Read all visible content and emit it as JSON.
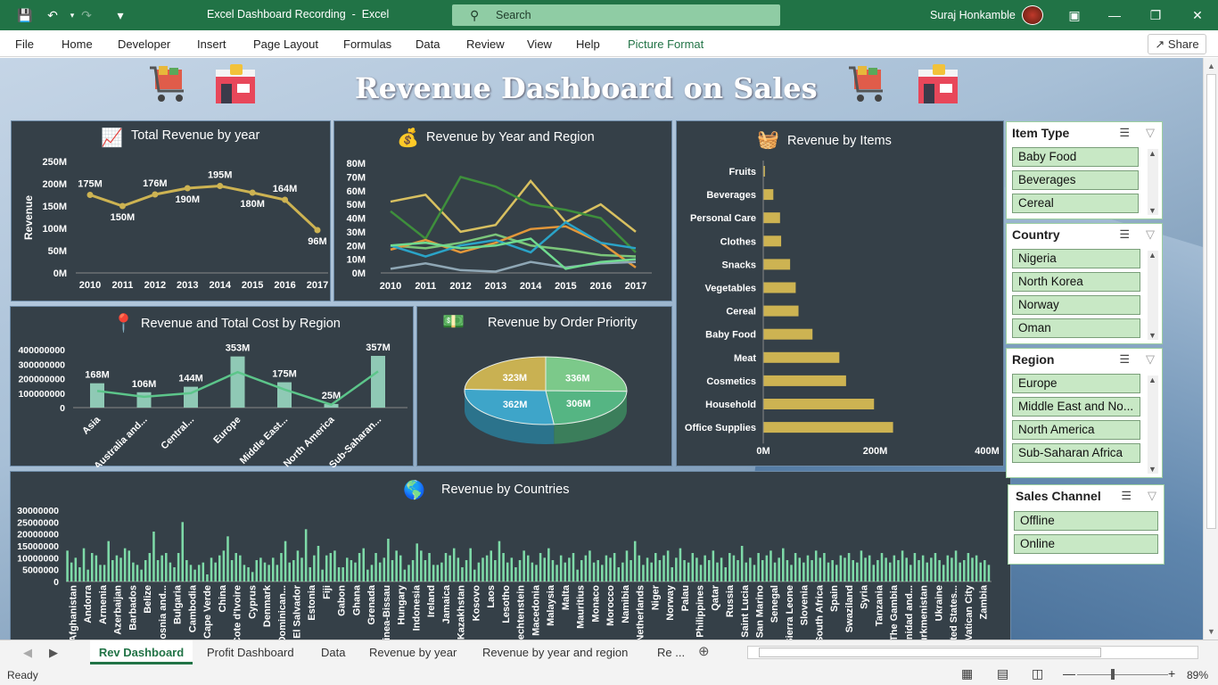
{
  "window": {
    "title": "Excel Dashboard Recording",
    "app": "Excel",
    "search": "Search",
    "user": "Suraj Honkamble"
  },
  "menu": [
    "File",
    "Home",
    "Developer",
    "Insert",
    "Page Layout",
    "Formulas",
    "Data",
    "Review",
    "View",
    "Help",
    "Picture Format"
  ],
  "share": "Share",
  "dashboard": {
    "title": "Revenue Dashboard on Sales"
  },
  "charts": {
    "total_by_year": {
      "title": "Total Revenue by year"
    },
    "year_region": {
      "title": "Revenue by Year and Region"
    },
    "items": {
      "title": "Revenue by Items"
    },
    "region_cost": {
      "title": "Revenue and Total Cost by Region"
    },
    "priority": {
      "title": "Revenue by Order Priority"
    },
    "countries": {
      "title": "Revenue by Countries"
    }
  },
  "chart_data": [
    {
      "type": "line",
      "title": "Total Revenue by year",
      "ylabel": "Revenue",
      "x": [
        "2010",
        "2011",
        "2012",
        "2013",
        "2014",
        "2015",
        "2016",
        "2017"
      ],
      "values": [
        175,
        150,
        176,
        190,
        195,
        180,
        164,
        96
      ],
      "data_labels": [
        "175M",
        "150M",
        "176M",
        "190M",
        "195M",
        "180M",
        "164M",
        "96M"
      ],
      "yticks": [
        "0M",
        "50M",
        "100M",
        "150M",
        "200M",
        "250M"
      ],
      "ylim": [
        0,
        250
      ],
      "color": "#cdb352"
    },
    {
      "type": "line",
      "title": "Revenue by Year and Region",
      "x": [
        "2010",
        "2011",
        "2012",
        "2013",
        "2014",
        "2015",
        "2016",
        "2017"
      ],
      "yticks": [
        "0M",
        "10M",
        "20M",
        "30M",
        "40M",
        "50M",
        "60M",
        "70M",
        "80M"
      ],
      "ylim": [
        0,
        80
      ],
      "series": [
        {
          "color": "#d8c060",
          "values": [
            52,
            57,
            30,
            35,
            67,
            37,
            50,
            30
          ]
        },
        {
          "color": "#3e8f3c",
          "values": [
            45,
            25,
            70,
            63,
            50,
            46,
            40,
            15
          ]
        },
        {
          "color": "#7bc67a",
          "values": [
            20,
            18,
            22,
            28,
            20,
            17,
            13,
            12
          ]
        },
        {
          "color": "#e3973a",
          "values": [
            17,
            24,
            15,
            22,
            32,
            34,
            22,
            4
          ]
        },
        {
          "color": "#2aa3c7",
          "values": [
            20,
            12,
            20,
            24,
            15,
            37,
            22,
            18
          ]
        },
        {
          "color": "#8fa7b5",
          "values": [
            3,
            7,
            2,
            1,
            8,
            4,
            7,
            8
          ]
        },
        {
          "color": "#6fdb8f",
          "values": [
            20,
            22,
            18,
            20,
            25,
            3,
            8,
            10
          ]
        }
      ]
    },
    {
      "type": "bar",
      "title": "Revenue by Items",
      "categories": [
        "Fruits",
        "Beverages",
        "Personal Care",
        "Clothes",
        "Snacks",
        "Vegetables",
        "Cereal",
        "Baby Food",
        "Meat",
        "Cosmetics",
        "Household",
        "Office Supplies"
      ],
      "values": [
        3,
        18,
        30,
        32,
        48,
        58,
        63,
        88,
        136,
        148,
        198,
        232
      ],
      "xticks": [
        "0M",
        "200M",
        "400M"
      ],
      "xlim": [
        0,
        400
      ],
      "color": "#cdb352"
    },
    {
      "type": "bar",
      "title": "Revenue and Total Cost by Region",
      "categories": [
        "Asia",
        "Australia and...",
        "Central...",
        "Europe",
        "Middle East...",
        "North America",
        "Sub-Saharan..."
      ],
      "values": [
        168,
        106,
        144,
        353,
        175,
        25,
        357
      ],
      "data_labels": [
        "168M",
        "106M",
        "144M",
        "353M",
        "175M",
        "25M",
        "357M"
      ],
      "line_values": [
        115,
        75,
        100,
        245,
        125,
        20,
        250
      ],
      "yticks": [
        "0",
        "100000000",
        "200000000",
        "300000000",
        "400000000"
      ],
      "ylim": [
        0,
        400
      ],
      "bar_color": "#8fc9b5",
      "line_color": "#5cc58a"
    },
    {
      "type": "pie",
      "title": "Revenue by Order Priority",
      "values": [
        336,
        306,
        362,
        323
      ],
      "data_labels": [
        "336M",
        "306M",
        "362M",
        "323M"
      ],
      "colors": [
        "#7cc98a",
        "#55b583",
        "#3ea5c9",
        "#c9b152"
      ]
    },
    {
      "type": "bar",
      "title": "Revenue by Countries",
      "yticks": [
        "0",
        "5000000",
        "10000000",
        "15000000",
        "20000000",
        "25000000",
        "30000000"
      ],
      "ylim": [
        0,
        30
      ],
      "color": "#7edaa8",
      "label_categories": [
        "Afghanistan",
        "Andorra",
        "Armenia",
        "Azerbaijan",
        "Barbados",
        "Belize",
        "Bosnia and...",
        "Bulgaria",
        "Cambodia",
        "Cape Verde",
        "China",
        "Cote d'Ivoire",
        "Cyprus",
        "Denmark",
        "Dominican...",
        "El Salvador",
        "Estonia",
        "Fiji",
        "Gabon",
        "Ghana",
        "Grenada",
        "Guinea-Bissau",
        "Hungary",
        "Indonesia",
        "Ireland",
        "Jamaica",
        "Kazakhstan",
        "Kosovo",
        "Laos",
        "Lesotho",
        "Liechtenstein",
        "Macedonia",
        "Malaysia",
        "Malta",
        "Mauritius",
        "Monaco",
        "Morocco",
        "Namibia",
        "Netherlands",
        "Niger",
        "Norway",
        "Palau",
        "Philippines",
        "Qatar",
        "Russia",
        "Saint Lucia",
        "San Marino",
        "Senegal",
        "Sierra Leone",
        "Slovenia",
        "South Africa",
        "Spain",
        "Swaziland",
        "Syria",
        "Tanzania",
        "The Gambia",
        "Trinidad and...",
        "Turkmenistan",
        "Ukraine",
        "United States...",
        "Vatican City",
        "Zambia"
      ],
      "values": [
        13,
        8,
        10,
        6,
        14,
        5,
        12,
        11,
        7,
        7,
        17,
        9,
        11,
        10,
        14,
        13,
        8,
        7,
        5,
        9,
        12,
        21,
        9,
        11,
        12,
        8,
        6,
        12,
        25,
        9,
        7,
        5,
        7,
        8,
        3,
        10,
        8,
        11,
        13,
        19,
        9,
        12,
        11,
        7,
        6,
        4,
        9,
        10,
        8,
        7,
        10,
        7,
        12,
        17,
        8,
        9,
        13,
        10,
        22,
        6,
        11,
        15,
        5,
        11,
        12,
        13,
        6,
        6,
        10,
        9,
        8,
        12,
        14,
        5,
        7,
        12,
        8,
        10,
        18,
        9,
        13,
        11,
        5,
        7,
        9,
        16,
        13,
        9,
        12,
        7,
        7,
        8,
        12,
        11,
        14,
        10,
        6,
        9,
        14,
        5,
        8,
        10,
        11,
        13,
        9,
        17,
        12,
        8,
        10,
        6,
        9,
        13,
        11,
        8,
        7,
        12,
        10,
        14,
        9,
        7,
        11,
        8,
        10,
        12,
        5,
        9,
        11,
        13,
        8,
        9,
        7,
        11,
        10,
        12,
        6,
        8,
        13,
        9,
        17,
        11,
        7,
        10,
        8,
        12,
        9,
        11,
        13,
        6,
        10,
        14,
        9,
        8,
        12,
        10,
        7,
        11,
        9,
        13,
        8,
        10,
        6,
        12,
        11,
        9,
        15,
        8,
        10,
        7,
        12,
        9,
        11,
        13,
        8,
        10,
        14,
        9,
        7,
        12,
        10,
        8,
        11,
        9,
        13,
        10,
        12,
        8,
        9,
        7,
        11,
        10,
        12,
        9,
        8,
        13,
        10,
        11,
        7,
        9,
        12,
        10,
        8,
        11,
        9,
        13,
        10,
        7,
        12,
        9,
        11,
        8,
        10,
        12,
        9,
        7,
        11,
        10,
        13,
        8,
        9,
        12,
        10,
        11,
        8,
        9,
        7
      ]
    }
  ],
  "slicers": {
    "item_type": {
      "title": "Item Type",
      "items": [
        "Baby Food",
        "Beverages",
        "Cereal"
      ]
    },
    "country": {
      "title": "Country",
      "items": [
        "Nigeria",
        "North Korea",
        "Norway",
        "Oman"
      ]
    },
    "region": {
      "title": "Region",
      "items": [
        "Europe",
        "Middle East and No...",
        "North America",
        "Sub-Saharan Africa"
      ]
    },
    "sales_channel": {
      "title": "Sales Channel",
      "items": [
        "Offline",
        "Online"
      ]
    }
  },
  "tabs": [
    "Rev Dashboard",
    "Profit Dashboard",
    "Data",
    "Revenue by year",
    "Revenue by year and region",
    "Re ..."
  ],
  "status": {
    "ready": "Ready",
    "zoom": "89%"
  }
}
